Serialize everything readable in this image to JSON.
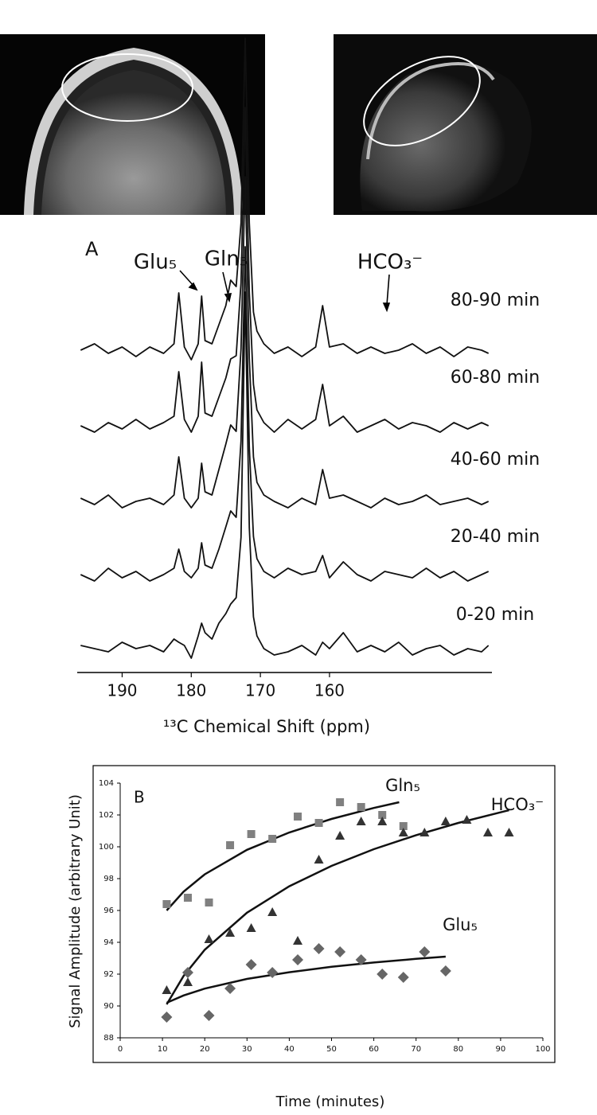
{
  "chart_data": [
    {
      "type": "spectra",
      "panel": "A",
      "annotations": [
        "Glu₅",
        "Gln₅",
        "HCO₃⁻"
      ],
      "x_label": "¹³C Chemical Shift (ppm)",
      "xlim": [
        196.5,
        136.5
      ],
      "xticks": [
        190,
        180,
        170,
        160
      ],
      "x": [
        196,
        194,
        192,
        190,
        188,
        186,
        184,
        182.5,
        181.8,
        181,
        180,
        179,
        178.5,
        178,
        177,
        176,
        175,
        174.3,
        173.5,
        172.8,
        172.2,
        171.6,
        171,
        170.5,
        169.5,
        168,
        166,
        164,
        162,
        161,
        160,
        158,
        156,
        154,
        152,
        150,
        148,
        146,
        144,
        142,
        140,
        138,
        137
      ],
      "series": [
        {
          "name": "80-90 min",
          "color": "#111111",
          "values": [
            0,
            2,
            -1,
            1,
            -2,
            1,
            -1,
            2,
            18,
            1,
            -3,
            2,
            17,
            3,
            2,
            8,
            14,
            22,
            20,
            40,
            98,
            40,
            12,
            6,
            2,
            -1,
            1,
            -2,
            1,
            14,
            1,
            2,
            -1,
            1,
            -1,
            0,
            2,
            -1,
            1,
            -2,
            1,
            0,
            -1
          ]
        },
        {
          "name": "60-80 min",
          "color": "#111111",
          "values": [
            0,
            -2,
            1,
            -1,
            2,
            -1,
            1,
            3,
            17,
            2,
            -2,
            3,
            20,
            4,
            3,
            9,
            15,
            21,
            22,
            45,
            100,
            42,
            13,
            5,
            1,
            -2,
            2,
            -1,
            2,
            13,
            0,
            3,
            -2,
            0,
            2,
            -1,
            1,
            0,
            -2,
            1,
            -1,
            1,
            0
          ]
        },
        {
          "name": "40-60 min",
          "color": "#111111",
          "values": [
            1,
            -1,
            2,
            -2,
            0,
            1,
            -1,
            2,
            14,
            1,
            -2,
            1,
            12,
            3,
            2,
            10,
            18,
            24,
            22,
            48,
            102,
            45,
            14,
            6,
            2,
            0,
            -2,
            1,
            -1,
            10,
            1,
            2,
            0,
            -2,
            1,
            -1,
            0,
            2,
            -1,
            0,
            1,
            -1,
            0
          ]
        },
        {
          "name": "20-40 min",
          "color": "#111111",
          "values": [
            0,
            -2,
            2,
            -1,
            1,
            -2,
            0,
            2,
            8,
            1,
            -1,
            2,
            10,
            3,
            2,
            8,
            15,
            20,
            18,
            42,
            103,
            40,
            12,
            5,
            1,
            -1,
            2,
            0,
            1,
            6,
            -1,
            4,
            0,
            -2,
            1,
            0,
            -1,
            2,
            -1,
            1,
            -2,
            0,
            1
          ]
        },
        {
          "name": "0-20 min",
          "color": "#111111",
          "values": [
            1,
            0,
            -1,
            2,
            0,
            1,
            -1,
            3,
            2,
            1,
            -3,
            4,
            8,
            5,
            3,
            8,
            11,
            14,
            16,
            35,
            112,
            38,
            10,
            4,
            0,
            -2,
            -1,
            1,
            -2,
            2,
            0,
            5,
            -1,
            1,
            -1,
            2,
            -2,
            0,
            1,
            -2,
            0,
            -1,
            1
          ]
        }
      ]
    },
    {
      "type": "scatter",
      "panel": "B",
      "x_label": "Time (minutes)",
      "y_label": "Signal Amplitude (arbitrary Unit)",
      "xlim": [
        0,
        100
      ],
      "xticks": [
        0,
        10,
        20,
        30,
        40,
        50,
        60,
        70,
        80,
        90,
        100
      ],
      "ylim": [
        88,
        104
      ],
      "yticks": [
        88,
        90,
        92,
        94,
        96,
        98,
        100,
        102,
        104
      ],
      "series": [
        {
          "name": "Gln₅",
          "marker": "square",
          "color": "#808080",
          "x": [
            11,
            16,
            21,
            26,
            31,
            36,
            42,
            47,
            52,
            57,
            62,
            67
          ],
          "values": [
            96.4,
            96.8,
            96.5,
            100.1,
            100.8,
            100.5,
            101.9,
            101.5,
            102.8,
            102.5,
            102.0,
            101.3
          ],
          "fit": {
            "x": [
              11,
              15,
              20,
              30,
              40,
              50,
              60,
              66
            ],
            "values": [
              96,
              97.18,
              98.27,
              99.81,
              100.9,
              101.75,
              102.44,
              102.8
            ]
          }
        },
        {
          "name": "HCO₃⁻",
          "marker": "triangle",
          "color": "#333333",
          "x": [
            11,
            16,
            21,
            26,
            31,
            36,
            42,
            47,
            52,
            57,
            62,
            67,
            72,
            77,
            82,
            87,
            92
          ],
          "values": [
            91.0,
            91.5,
            94.2,
            94.6,
            94.9,
            95.9,
            94.1,
            99.2,
            100.7,
            101.6,
            101.6,
            100.9,
            100.9,
            101.6,
            101.7,
            100.9,
            100.9
          ],
          "fit": {
            "x": [
              11,
              15,
              20,
              30,
              40,
              50,
              60,
              70,
              80,
              92
            ],
            "values": [
              90.1,
              91.88,
              93.53,
              95.86,
              97.52,
              98.8,
              99.85,
              100.73,
              101.5,
              102.3
            ]
          }
        },
        {
          "name": "Glu₅",
          "marker": "diamond",
          "color": "#666666",
          "x": [
            11,
            16,
            21,
            26,
            31,
            36,
            42,
            47,
            52,
            57,
            62,
            67,
            72,
            77
          ],
          "values": [
            89.3,
            92.1,
            89.4,
            91.1,
            92.6,
            92.1,
            92.9,
            93.6,
            93.4,
            92.9,
            92.0,
            91.8,
            93.4,
            92.2
          ],
          "fit": {
            "x": [
              11,
              15,
              20,
              30,
              40,
              50,
              60,
              70,
              77
            ],
            "values": [
              90.2,
              90.66,
              91.09,
              91.7,
              92.12,
              92.46,
              92.73,
              92.96,
              93.1
            ]
          }
        }
      ]
    }
  ]
}
